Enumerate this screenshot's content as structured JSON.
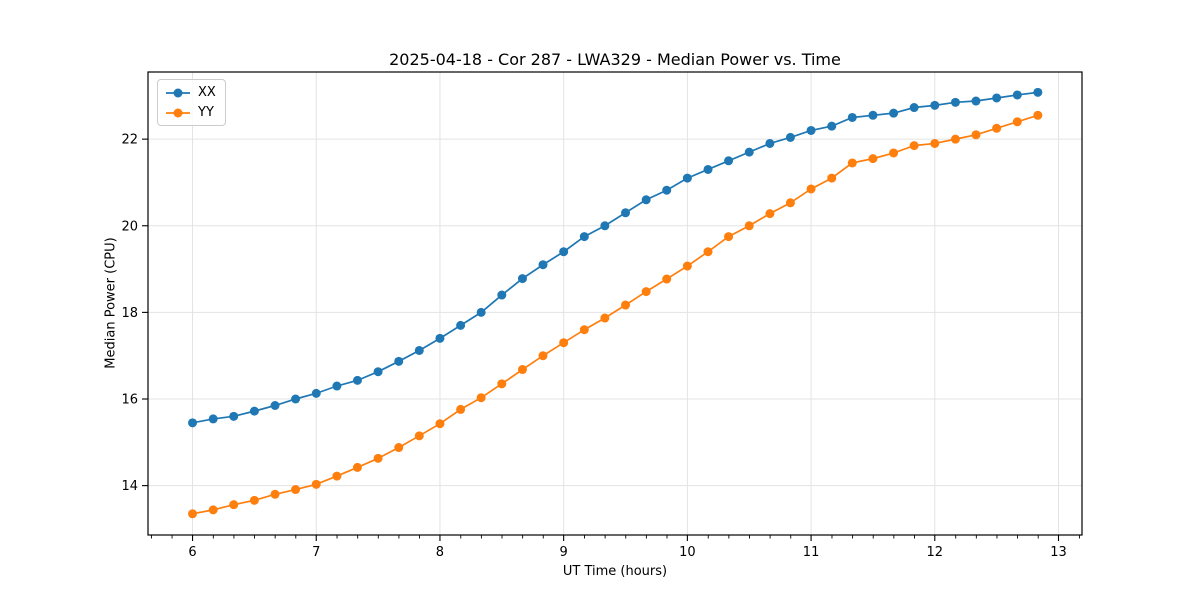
{
  "chart_data": {
    "type": "line",
    "title": "2025-04-18 - Cor 287 - LWA329 - Median Power vs. Time",
    "xlabel": "UT Time (hours)",
    "ylabel": "Median Power (CPU)",
    "xlim": [
      5.64,
      13.19
    ],
    "ylim": [
      12.86,
      23.55
    ],
    "xticks": [
      6,
      7,
      8,
      9,
      10,
      11,
      12,
      13
    ],
    "yticks": [
      14,
      16,
      18,
      20,
      22
    ],
    "x_minor_step": 0.1667,
    "grid": true,
    "grid_color": "#e3e3e3",
    "legend_position": "upper-left",
    "marker": "circle",
    "marker_radius": 4.5,
    "line_width": 1.7,
    "x": [
      6.0,
      6.167,
      6.333,
      6.5,
      6.667,
      6.833,
      7.0,
      7.167,
      7.333,
      7.5,
      7.667,
      7.833,
      8.0,
      8.167,
      8.333,
      8.5,
      8.667,
      8.833,
      9.0,
      9.167,
      9.333,
      9.5,
      9.667,
      9.833,
      10.0,
      10.167,
      10.333,
      10.5,
      10.667,
      10.833,
      11.0,
      11.167,
      11.333,
      11.5,
      11.667,
      11.833,
      12.0,
      12.167,
      12.333,
      12.5,
      12.667,
      12.833
    ],
    "series": [
      {
        "name": "XX",
        "color": "#1f77b4",
        "values": [
          15.45,
          15.54,
          15.6,
          15.72,
          15.85,
          16.0,
          16.13,
          16.3,
          16.43,
          16.63,
          16.87,
          17.12,
          17.4,
          17.7,
          18.0,
          18.4,
          18.78,
          19.1,
          19.4,
          19.75,
          20.0,
          20.3,
          20.6,
          20.82,
          21.1,
          21.3,
          21.5,
          21.7,
          21.9,
          22.04,
          22.2,
          22.3,
          22.5,
          22.55,
          22.6,
          22.73,
          22.78,
          22.85,
          22.88,
          22.95,
          23.02,
          23.08
        ]
      },
      {
        "name": "YY",
        "color": "#ff7f0e",
        "values": [
          13.35,
          13.44,
          13.56,
          13.66,
          13.8,
          13.91,
          14.03,
          14.22,
          14.42,
          14.63,
          14.88,
          15.15,
          15.43,
          15.76,
          16.03,
          16.35,
          16.68,
          17.0,
          17.3,
          17.6,
          17.87,
          18.17,
          18.48,
          18.77,
          19.07,
          19.4,
          19.75,
          20.0,
          20.28,
          20.53,
          20.85,
          21.1,
          21.45,
          21.55,
          21.68,
          21.85,
          21.9,
          22.0,
          22.1,
          22.25,
          22.4,
          22.55
        ]
      }
    ]
  }
}
